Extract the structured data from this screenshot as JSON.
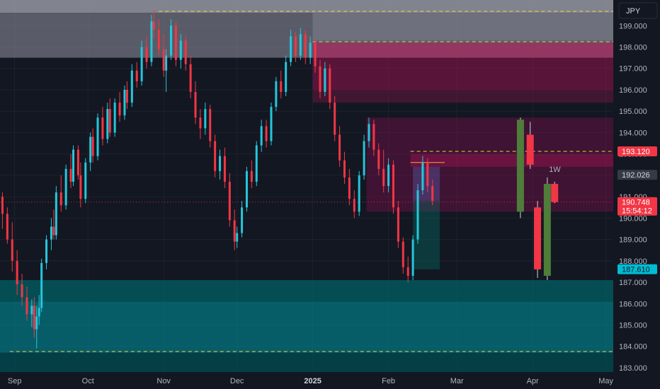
{
  "chart_data": {
    "type": "candlestick",
    "currency": "JPY",
    "timeframe_label": "1W",
    "ylim": [
      182.8,
      200.2
    ],
    "y_ticks": [
      183.0,
      184.0,
      185.0,
      186.0,
      187.0,
      188.0,
      189.0,
      190.0,
      191.0,
      192.0,
      193.0,
      194.0,
      195.0,
      196.0,
      197.0,
      198.0,
      199.0
    ],
    "y_tick_labels": [
      "183.000",
      "184.000",
      "185.000",
      "186.000",
      "187.000",
      "188.000",
      "189.000",
      "190.000",
      "191.000",
      "192.000",
      "193.000",
      "194.000",
      "195.000",
      "196.000",
      "197.000",
      "198.000",
      "199.000"
    ],
    "x_range": [
      "2024-08-26",
      "2025-05-04"
    ],
    "x_ticks": [
      {
        "date": "2024-09-01",
        "label": "Sep",
        "bold": false
      },
      {
        "date": "2024-10-01",
        "label": "Oct",
        "bold": false
      },
      {
        "date": "2024-11-01",
        "label": "Nov",
        "bold": false
      },
      {
        "date": "2024-12-01",
        "label": "Dec",
        "bold": false
      },
      {
        "date": "2025-01-01",
        "label": "2025",
        "bold": true
      },
      {
        "date": "2025-02-01",
        "label": "Feb",
        "bold": false
      },
      {
        "date": "2025-03-01",
        "label": "Mar",
        "bold": false
      },
      {
        "date": "2025-04-01",
        "label": "Apr",
        "bold": false
      },
      {
        "date": "2025-05-01",
        "label": "May",
        "bold": false
      }
    ],
    "price_badges": [
      {
        "value": 193.12,
        "label": "193.120",
        "color": "#f23645",
        "text_color": "#ffffff"
      },
      {
        "value": 192.026,
        "label": "192.026",
        "color": "#363a45",
        "text_color": "#d1d4dc"
      },
      {
        "value": 187.61,
        "label": "187.610",
        "color": "#00bcd4",
        "text_color": "#131722"
      }
    ],
    "current_price": {
      "value": 190.748,
      "label": "190.748",
      "countdown": "15:54:12",
      "color": "#f23645"
    },
    "colors": {
      "background": "#131722",
      "up": "#26c6da",
      "down": "#f23645",
      "weekly_up": "#4f7d3a",
      "weekly_down": "#f23645",
      "grid": "#1e222d",
      "text": "#b2b5be"
    },
    "zones": [
      {
        "x0": "2024-08-26",
        "x1": "2025-05-04",
        "y0": 199.6,
        "y1": 200.2,
        "color": "#9598a1",
        "opacity": 0.85
      },
      {
        "x0": "2024-08-26",
        "x1": "2025-05-04",
        "y0": 197.5,
        "y1": 199.6,
        "color": "#787b86",
        "opacity": 0.7
      },
      {
        "x0": "2025-01-01",
        "x1": "2025-05-04",
        "y0": 198.3,
        "y1": 199.6,
        "color": "#787b86",
        "opacity": 0.7
      },
      {
        "x0": "2025-01-01",
        "x1": "2025-05-04",
        "y0": 197.5,
        "y1": 198.2,
        "color": "#c2185b",
        "opacity": 0.55
      },
      {
        "x0": "2025-01-01",
        "x1": "2025-05-04",
        "y0": 196.0,
        "y1": 197.5,
        "color": "#ad1457",
        "opacity": 0.45
      },
      {
        "x0": "2025-01-01",
        "x1": "2025-05-04",
        "y0": 195.4,
        "y1": 196.0,
        "color": "#ad1457",
        "opacity": 0.3
      },
      {
        "x0": "2025-01-23",
        "x1": "2025-05-04",
        "y0": 190.3,
        "y1": 194.7,
        "color": "#880e4f",
        "opacity": 0.38
      },
      {
        "x0": "2025-02-10",
        "x1": "2025-05-04",
        "y0": 192.4,
        "y1": 193.0,
        "color": "#ad1457",
        "opacity": 0.4
      },
      {
        "x0": "2025-02-11",
        "x1": "2025-02-22",
        "y0": 190.8,
        "y1": 192.4,
        "color": "#5c6bc0",
        "opacity": 0.35
      },
      {
        "x0": "2025-02-11",
        "x1": "2025-02-22",
        "y0": 187.6,
        "y1": 190.8,
        "color": "#00796b",
        "opacity": 0.35
      },
      {
        "x0": "2024-08-26",
        "x1": "2025-05-04",
        "y0": 186.1,
        "y1": 187.1,
        "color": "#006064",
        "opacity": 0.75
      },
      {
        "x0": "2024-08-26",
        "x1": "2025-05-04",
        "y0": 183.7,
        "y1": 186.1,
        "color": "#00838f",
        "opacity": 0.65
      },
      {
        "x0": "2024-08-26",
        "x1": "2025-05-04",
        "y0": 182.8,
        "y1": 183.7,
        "color": "#004d52",
        "opacity": 0.75
      }
    ],
    "levels": [
      {
        "value": 199.67,
        "x0": "2024-10-30",
        "x1": "2025-05-04",
        "color": "#f5d442",
        "dash": true
      },
      {
        "value": 198.25,
        "x0": "2025-01-01",
        "x1": "2025-05-04",
        "color": "#f5d442",
        "dash": true
      },
      {
        "value": 193.12,
        "x0": "2025-02-10",
        "x1": "2025-05-04",
        "color": "#f5d442",
        "dash": true
      },
      {
        "value": 192.6,
        "x0": "2025-02-10",
        "x1": "2025-02-24",
        "color": "#f5a742",
        "dash": false
      },
      {
        "value": 183.76,
        "x0": "2024-08-30",
        "x1": "2025-05-04",
        "color": "#f5d442",
        "dash": true
      },
      {
        "value": 190.748,
        "x0": "2024-08-26",
        "x1": "2025-05-04",
        "color": "#f23645",
        "dash": "dot"
      }
    ],
    "daily_candles": [
      [
        "2024-08-27",
        191.0,
        191.2,
        189.5,
        190.2
      ],
      [
        "2024-08-29",
        190.2,
        190.5,
        188.8,
        189.0
      ],
      [
        "2024-08-31",
        189.0,
        189.8,
        187.5,
        188.0
      ],
      [
        "2024-09-02",
        188.0,
        188.5,
        186.4,
        186.9
      ],
      [
        "2024-09-04",
        186.9,
        187.4,
        185.9,
        186.3
      ],
      [
        "2024-09-06",
        186.3,
        186.8,
        185.2,
        185.5
      ],
      [
        "2024-09-08",
        185.5,
        186.2,
        184.9,
        185.9
      ],
      [
        "2024-09-09",
        185.9,
        186.3,
        184.4,
        184.8
      ],
      [
        "2024-09-10",
        184.8,
        185.9,
        183.9,
        185.4
      ],
      [
        "2024-09-11",
        185.4,
        186.4,
        185.0,
        185.8
      ],
      [
        "2024-09-12",
        185.8,
        188.1,
        185.6,
        187.9
      ],
      [
        "2024-09-14",
        187.9,
        189.2,
        187.6,
        189.0
      ],
      [
        "2024-09-16",
        189.0,
        190.0,
        188.5,
        189.6
      ],
      [
        "2024-09-17",
        189.6,
        190.4,
        189.0,
        189.2
      ],
      [
        "2024-09-18",
        189.2,
        191.5,
        189.0,
        191.2
      ],
      [
        "2024-09-20",
        191.2,
        192.0,
        190.3,
        190.6
      ],
      [
        "2024-09-22",
        190.6,
        192.5,
        190.4,
        192.3
      ],
      [
        "2024-09-24",
        192.3,
        193.0,
        191.4,
        191.7
      ],
      [
        "2024-09-25",
        191.7,
        193.4,
        191.5,
        193.2
      ],
      [
        "2024-09-27",
        193.2,
        193.4,
        191.8,
        192.0
      ],
      [
        "2024-09-28",
        192.0,
        192.6,
        190.5,
        190.9
      ],
      [
        "2024-09-30",
        190.9,
        192.8,
        190.7,
        192.6
      ],
      [
        "2024-10-02",
        192.6,
        194.0,
        192.2,
        193.8
      ],
      [
        "2024-10-03",
        193.8,
        194.2,
        192.6,
        192.9
      ],
      [
        "2024-10-05",
        192.9,
        194.9,
        192.7,
        194.7
      ],
      [
        "2024-10-07",
        194.7,
        195.2,
        193.4,
        193.7
      ],
      [
        "2024-10-09",
        193.7,
        195.4,
        193.5,
        195.1
      ],
      [
        "2024-10-10",
        195.1,
        195.6,
        193.8,
        194.0
      ],
      [
        "2024-10-12",
        194.0,
        195.6,
        193.8,
        195.4
      ],
      [
        "2024-10-14",
        195.4,
        195.9,
        194.5,
        194.8
      ],
      [
        "2024-10-16",
        194.8,
        196.2,
        194.6,
        196.0
      ],
      [
        "2024-10-17",
        196.0,
        196.4,
        195.1,
        195.4
      ],
      [
        "2024-10-19",
        195.4,
        197.2,
        195.2,
        196.9
      ],
      [
        "2024-10-21",
        196.9,
        197.3,
        196.1,
        196.4
      ],
      [
        "2024-10-23",
        196.4,
        198.3,
        196.2,
        198.0
      ],
      [
        "2024-10-25",
        198.0,
        198.5,
        197.0,
        197.3
      ],
      [
        "2024-10-27",
        197.3,
        199.5,
        197.1,
        199.2
      ],
      [
        "2024-10-28",
        199.2,
        199.7,
        198.4,
        198.8
      ],
      [
        "2024-10-30",
        198.8,
        199.3,
        197.6,
        197.9
      ],
      [
        "2024-11-01",
        197.9,
        198.6,
        196.6,
        196.9
      ],
      [
        "2024-11-02",
        196.9,
        197.9,
        195.9,
        197.6
      ],
      [
        "2024-11-04",
        197.6,
        199.3,
        197.4,
        199.0
      ],
      [
        "2024-11-06",
        199.0,
        199.2,
        197.1,
        197.4
      ],
      [
        "2024-11-08",
        197.4,
        198.6,
        197.0,
        198.3
      ],
      [
        "2024-11-10",
        198.3,
        198.5,
        196.9,
        197.2
      ],
      [
        "2024-11-12",
        197.2,
        197.6,
        195.6,
        195.9
      ],
      [
        "2024-11-14",
        195.9,
        196.4,
        194.4,
        194.7
      ],
      [
        "2024-11-16",
        194.7,
        195.1,
        193.7,
        194.2
      ],
      [
        "2024-11-18",
        194.2,
        195.4,
        193.9,
        195.1
      ],
      [
        "2024-11-20",
        195.1,
        195.3,
        193.3,
        193.6
      ],
      [
        "2024-11-22",
        193.6,
        193.9,
        191.9,
        192.2
      ],
      [
        "2024-11-24",
        192.2,
        193.2,
        191.8,
        192.9
      ],
      [
        "2024-11-26",
        192.9,
        193.3,
        191.4,
        191.7
      ],
      [
        "2024-11-28",
        191.7,
        192.1,
        189.6,
        189.9
      ],
      [
        "2024-11-30",
        189.9,
        190.4,
        188.5,
        188.9
      ],
      [
        "2024-12-01",
        188.9,
        189.6,
        188.6,
        189.3
      ],
      [
        "2024-12-03",
        189.3,
        190.8,
        189.1,
        190.5
      ],
      [
        "2024-12-05",
        190.5,
        192.4,
        190.3,
        192.2
      ],
      [
        "2024-12-07",
        192.2,
        192.7,
        191.4,
        191.7
      ],
      [
        "2024-12-09",
        191.7,
        193.6,
        191.5,
        193.4
      ],
      [
        "2024-12-11",
        193.4,
        194.6,
        193.1,
        194.3
      ],
      [
        "2024-12-13",
        194.3,
        194.6,
        193.3,
        193.6
      ],
      [
        "2024-12-15",
        193.6,
        195.4,
        193.4,
        195.2
      ],
      [
        "2024-12-17",
        195.2,
        196.6,
        195.0,
        196.4
      ],
      [
        "2024-12-19",
        196.4,
        196.9,
        195.6,
        195.9
      ],
      [
        "2024-12-21",
        195.9,
        197.6,
        195.7,
        197.3
      ],
      [
        "2024-12-23",
        197.3,
        198.8,
        197.1,
        198.5
      ],
      [
        "2024-12-25",
        198.5,
        198.7,
        197.3,
        197.6
      ],
      [
        "2024-12-27",
        197.6,
        198.9,
        197.4,
        198.6
      ],
      [
        "2024-12-29",
        198.6,
        198.8,
        197.2,
        197.5
      ],
      [
        "2024-12-31",
        197.5,
        198.5,
        197.2,
        198.2
      ],
      [
        "2025-01-02",
        198.2,
        198.4,
        196.8,
        197.1
      ],
      [
        "2025-01-04",
        197.1,
        197.4,
        195.6,
        195.9
      ],
      [
        "2025-01-06",
        195.9,
        197.3,
        195.7,
        197.0
      ],
      [
        "2025-01-08",
        197.0,
        197.2,
        195.1,
        195.4
      ],
      [
        "2025-01-10",
        195.4,
        195.7,
        193.6,
        193.9
      ],
      [
        "2025-01-12",
        193.9,
        194.3,
        192.4,
        192.7
      ],
      [
        "2025-01-14",
        192.7,
        193.1,
        191.6,
        191.9
      ],
      [
        "2025-01-16",
        191.9,
        192.3,
        190.6,
        190.9
      ],
      [
        "2025-01-18",
        190.9,
        191.3,
        190.0,
        190.3
      ],
      [
        "2025-01-20",
        190.3,
        192.2,
        190.1,
        192.0
      ],
      [
        "2025-01-22",
        192.0,
        193.9,
        191.8,
        193.6
      ],
      [
        "2025-01-24",
        193.6,
        194.7,
        193.3,
        194.4
      ],
      [
        "2025-01-26",
        194.4,
        194.6,
        192.9,
        193.2
      ],
      [
        "2025-01-28",
        193.2,
        193.5,
        192.0,
        192.3
      ],
      [
        "2025-01-30",
        192.3,
        193.2,
        191.2,
        191.5
      ],
      [
        "2025-02-01",
        191.5,
        192.8,
        191.2,
        192.5
      ],
      [
        "2025-02-03",
        192.5,
        192.7,
        190.2,
        190.5
      ],
      [
        "2025-02-05",
        190.5,
        190.8,
        188.6,
        188.9
      ],
      [
        "2025-02-07",
        188.9,
        189.1,
        187.4,
        187.7
      ],
      [
        "2025-02-09",
        187.7,
        188.2,
        187.0,
        187.3
      ],
      [
        "2025-02-11",
        187.3,
        189.2,
        187.1,
        189.0
      ],
      [
        "2025-02-13",
        189.0,
        191.6,
        188.8,
        191.3
      ],
      [
        "2025-02-15",
        191.3,
        192.9,
        191.1,
        192.6
      ],
      [
        "2025-02-17",
        192.6,
        192.8,
        191.2,
        191.5
      ],
      [
        "2025-02-19",
        191.5,
        191.8,
        190.6,
        190.8
      ]
    ],
    "weekly_candles": [
      [
        "2025-03-27",
        190.3,
        194.7,
        190.0,
        194.6
      ],
      [
        "2025-03-31",
        193.9,
        194.5,
        192.3,
        192.5
      ],
      [
        "2025-04-03",
        190.5,
        190.8,
        187.2,
        187.6
      ],
      [
        "2025-04-07",
        187.3,
        191.9,
        187.1,
        191.6
      ],
      [
        "2025-04-10",
        191.6,
        191.7,
        190.7,
        190.748
      ]
    ]
  }
}
